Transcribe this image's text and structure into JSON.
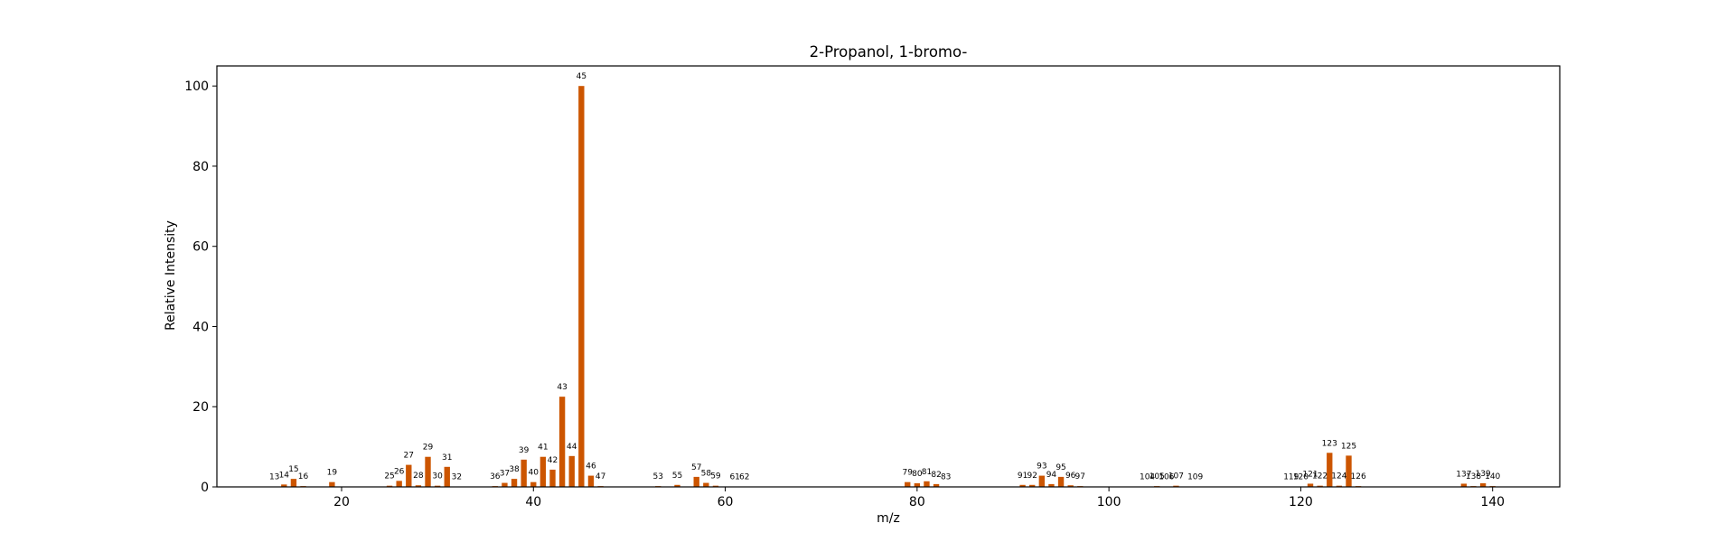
{
  "chart_data": {
    "type": "bar",
    "title": "2-Propanol, 1-bromo-",
    "xlabel": "m/z",
    "ylabel": "Relative Intensity",
    "xlim": [
      7,
      147
    ],
    "ylim": [
      0,
      105
    ],
    "xticks": [
      20,
      40,
      60,
      80,
      100,
      120,
      140
    ],
    "yticks": [
      0,
      20,
      40,
      60,
      80,
      100
    ],
    "grid": false,
    "legend": "none",
    "bar_color": "#cc5500",
    "points": [
      {
        "x": 13,
        "y": 0.1
      },
      {
        "x": 14,
        "y": 0.6
      },
      {
        "x": 15,
        "y": 2.0
      },
      {
        "x": 16,
        "y": 0.2
      },
      {
        "x": 19,
        "y": 1.2
      },
      {
        "x": 25,
        "y": 0.3
      },
      {
        "x": 26,
        "y": 1.5
      },
      {
        "x": 27,
        "y": 5.5
      },
      {
        "x": 28,
        "y": 0.4
      },
      {
        "x": 29,
        "y": 7.5
      },
      {
        "x": 30,
        "y": 0.3
      },
      {
        "x": 31,
        "y": 5.0
      },
      {
        "x": 32,
        "y": 0.1
      },
      {
        "x": 36,
        "y": 0.2
      },
      {
        "x": 37,
        "y": 1.0
      },
      {
        "x": 38,
        "y": 2.0
      },
      {
        "x": 39,
        "y": 6.8
      },
      {
        "x": 40,
        "y": 1.2
      },
      {
        "x": 41,
        "y": 7.5
      },
      {
        "x": 42,
        "y": 4.3
      },
      {
        "x": 43,
        "y": 22.5
      },
      {
        "x": 44,
        "y": 7.7
      },
      {
        "x": 45,
        "y": 100
      },
      {
        "x": 46,
        "y": 2.8
      },
      {
        "x": 47,
        "y": 0.2
      },
      {
        "x": 53,
        "y": 0.2
      },
      {
        "x": 55,
        "y": 0.5
      },
      {
        "x": 57,
        "y": 2.5
      },
      {
        "x": 58,
        "y": 1.0
      },
      {
        "x": 59,
        "y": 0.3
      },
      {
        "x": 61,
        "y": 0.1
      },
      {
        "x": 62,
        "y": 0.1
      },
      {
        "x": 79,
        "y": 1.2
      },
      {
        "x": 80,
        "y": 0.9
      },
      {
        "x": 81,
        "y": 1.4
      },
      {
        "x": 82,
        "y": 0.7
      },
      {
        "x": 83,
        "y": 0.1
      },
      {
        "x": 91,
        "y": 0.5
      },
      {
        "x": 92,
        "y": 0.5
      },
      {
        "x": 93,
        "y": 2.8
      },
      {
        "x": 94,
        "y": 0.7
      },
      {
        "x": 95,
        "y": 2.5
      },
      {
        "x": 96,
        "y": 0.4
      },
      {
        "x": 97,
        "y": 0.2
      },
      {
        "x": 104,
        "y": 0.1
      },
      {
        "x": 105,
        "y": 0.2
      },
      {
        "x": 106,
        "y": 0.1
      },
      {
        "x": 107,
        "y": 0.3
      },
      {
        "x": 109,
        "y": 0.1
      },
      {
        "x": 119,
        "y": 0.1
      },
      {
        "x": 120,
        "y": 0.1
      },
      {
        "x": 121,
        "y": 0.8
      },
      {
        "x": 122,
        "y": 0.3
      },
      {
        "x": 123,
        "y": 8.5
      },
      {
        "x": 124,
        "y": 0.3
      },
      {
        "x": 125,
        "y": 7.8
      },
      {
        "x": 126,
        "y": 0.2
      },
      {
        "x": 137,
        "y": 0.8
      },
      {
        "x": 138,
        "y": 0.2
      },
      {
        "x": 139,
        "y": 0.9
      },
      {
        "x": 140,
        "y": 0.2
      }
    ]
  }
}
